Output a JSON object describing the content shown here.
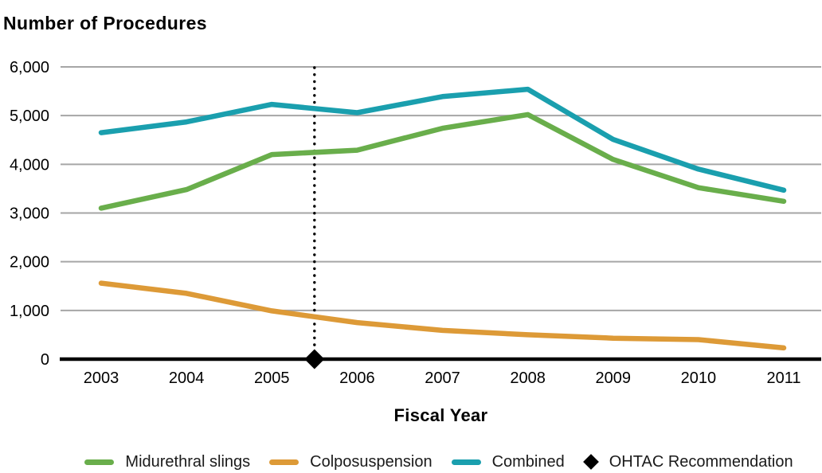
{
  "page": {
    "background": "#ffffff"
  },
  "chart_data": {
    "type": "line",
    "title": "Number of Procedures",
    "xlabel": "Fiscal Year",
    "ylabel": "Number of Procedures",
    "categories": [
      "2003",
      "2004",
      "2005",
      "2006",
      "2007",
      "2008",
      "2009",
      "2010",
      "2011"
    ],
    "series": [
      {
        "name": "Midurethral slings",
        "color": "#69AE4B",
        "values": [
          3100,
          3480,
          4200,
          4290,
          4740,
          5020,
          4100,
          3520,
          3240
        ]
      },
      {
        "name": "Colposuspension",
        "color": "#DD9A37",
        "values": [
          1560,
          1350,
          990,
          750,
          590,
          500,
          430,
          400,
          230
        ]
      },
      {
        "name": "Combined",
        "color": "#1A9FAE",
        "values": [
          4650,
          4870,
          5230,
          5060,
          5390,
          5540,
          4510,
          3900,
          3470
        ]
      }
    ],
    "marker": {
      "label": "OHTAC Recommendation",
      "color": "#000000",
      "shape": "diamond",
      "x_between": [
        "2005",
        "2006"
      ],
      "x_numeric": 2005.5,
      "y": 0,
      "vertical_line_style": "dotted"
    },
    "ylim": [
      0,
      6000
    ],
    "ytick_step": 1000,
    "ytick_labels": [
      "0",
      "1,000",
      "2,000",
      "3,000",
      "4,000",
      "5,000",
      "6,000"
    ],
    "grid": "horizontal",
    "legend_position": "bottom",
    "colors": {
      "gridline": "#A6A6A6",
      "axis": "#000000",
      "text": "#000000",
      "background": "#FFFFFF"
    }
  }
}
